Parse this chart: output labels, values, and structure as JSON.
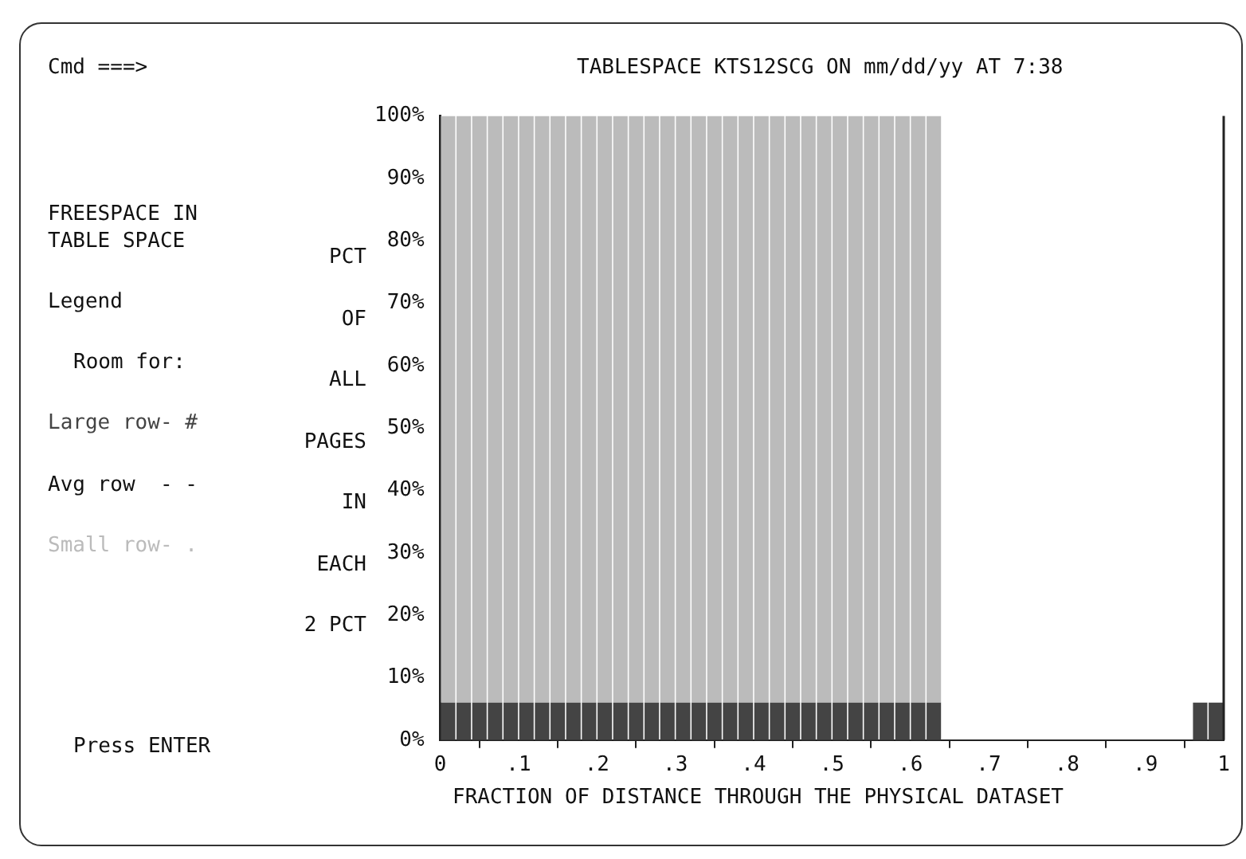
{
  "chart_data": {
    "type": "bar",
    "title": "TABLESPACE KTS12SCG ON mm/dd/yy AT 7:38",
    "subtitle": "FREESPACE IN\nTABLE SPACE",
    "xlabel": "FRACTION OF DISTANCE THROUGH THE PHYSICAL DATASET",
    "ylabel": "PCT\nOF\nALL\nPAGES\nIN\nEACH\n2 PCT",
    "legend_title": "Legend",
    "legend": "left",
    "annotations": [
      "Cmd ===>",
      "Room for:",
      "Avg row  - -",
      "Press ENTER"
    ],
    "x": [
      0.01,
      0.03,
      0.05,
      0.07,
      0.09,
      0.11,
      0.13,
      0.15,
      0.17,
      0.19,
      0.21,
      0.23,
      0.25,
      0.27,
      0.29,
      0.31,
      0.33,
      0.35,
      0.37,
      0.39,
      0.41,
      0.43,
      0.45,
      0.47,
      0.49,
      0.51,
      0.53,
      0.55,
      0.57,
      0.59,
      0.61,
      0.63,
      0.65,
      0.67,
      0.69,
      0.71,
      0.73,
      0.75,
      0.77,
      0.79,
      0.81,
      0.83,
      0.85,
      0.87,
      0.89,
      0.91,
      0.93,
      0.95,
      0.97,
      0.99
    ],
    "series": [
      {
        "name": "Large row- #",
        "color": "#444444",
        "values": [
          6,
          6,
          6,
          6,
          6,
          6,
          6,
          6,
          6,
          6,
          6,
          6,
          6,
          6,
          6,
          6,
          6,
          6,
          6,
          6,
          6,
          6,
          6,
          6,
          6,
          6,
          6,
          6,
          6,
          6,
          6,
          6,
          null,
          null,
          null,
          null,
          null,
          null,
          null,
          null,
          null,
          null,
          null,
          null,
          null,
          null,
          null,
          null,
          6,
          6
        ]
      },
      {
        "name": "Small row- .",
        "color": "#bbbbbb",
        "values": [
          94,
          94,
          94,
          94,
          94,
          94,
          94,
          94,
          94,
          94,
          94,
          94,
          94,
          94,
          94,
          94,
          94,
          94,
          94,
          94,
          94,
          94,
          94,
          94,
          94,
          94,
          94,
          94,
          94,
          94,
          94,
          94,
          null,
          null,
          null,
          null,
          null,
          null,
          null,
          null,
          null,
          null,
          null,
          null,
          null,
          null,
          null,
          null,
          null,
          null
        ]
      }
    ],
    "xlim": [
      0,
      1
    ],
    "xticks": [
      {
        "value": 0,
        "label": "0"
      },
      {
        "value": 0.1,
        "label": ".1"
      },
      {
        "value": 0.2,
        "label": ".2"
      },
      {
        "value": 0.3,
        "label": ".3"
      },
      {
        "value": 0.4,
        "label": ".4"
      },
      {
        "value": 0.5,
        "label": ".5"
      },
      {
        "value": 0.6,
        "label": ".6"
      },
      {
        "value": 0.7,
        "label": ".7"
      },
      {
        "value": 0.8,
        "label": ".8"
      },
      {
        "value": 0.9,
        "label": ".9"
      },
      {
        "value": 1,
        "label": "1"
      }
    ],
    "ylim": [
      0,
      100
    ],
    "yticks": [
      {
        "value": 0,
        "label": "0%"
      },
      {
        "value": 10,
        "label": "10%"
      },
      {
        "value": 20,
        "label": "20%"
      },
      {
        "value": 30,
        "label": "30%"
      },
      {
        "value": 40,
        "label": "40%"
      },
      {
        "value": 50,
        "label": "50%"
      },
      {
        "value": 60,
        "label": "60%"
      },
      {
        "value": 70,
        "label": "70%"
      },
      {
        "value": 80,
        "label": "80%"
      },
      {
        "value": 90,
        "label": "90%"
      },
      {
        "value": 100,
        "label": "100%"
      }
    ],
    "stacked": true,
    "grid": false
  }
}
